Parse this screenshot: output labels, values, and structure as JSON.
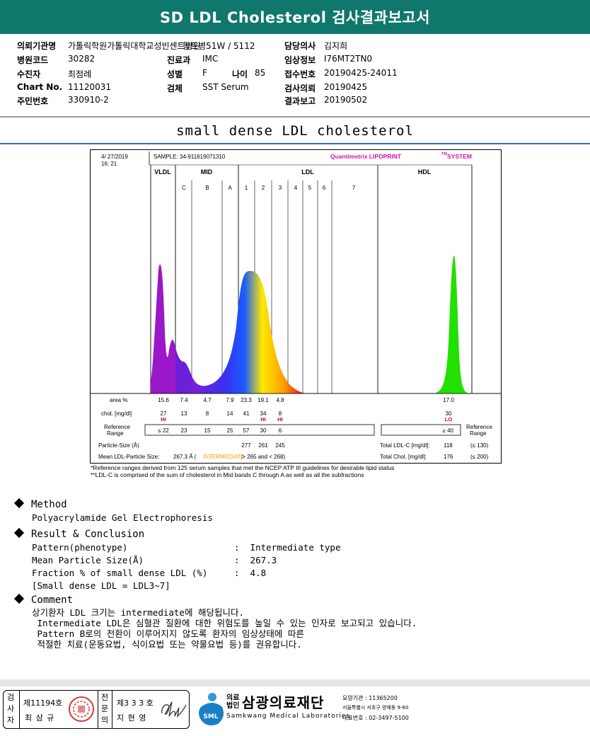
{
  "header": {
    "title": "SD LDL Cholesterol 검사결과보고서"
  },
  "info": {
    "institution_label": "의뢰기관명",
    "institution_value": "가톨릭학원가톨릭대학교성빈센트병원",
    "ward_value": "동트병51W / 5112",
    "hospital_code_label": "병원코드",
    "hospital_code_value": "30282",
    "patient_label": "수진자",
    "patient_value": "최점례",
    "chart_label": "Chart No.",
    "chart_value": "11120031",
    "resident_label": "주민번호",
    "resident_value": "330910-2",
    "dept_label": "진료과",
    "dept_value": "IMC",
    "sex_label": "성별",
    "sex_value": "F",
    "age_label": "나이",
    "age_value": "85",
    "specimen_label": "검체",
    "specimen_value": "SST Serum",
    "doctor_label": "담당의사",
    "doctor_value": "김지희",
    "clinical_label": "임상정보",
    "clinical_value": "I76MT2TN0",
    "receipt_label": "접수번호",
    "receipt_value": "20190425-24011",
    "request_label": "검사의뢰",
    "request_value": "20190425",
    "report_label": "결과보고",
    "report_value": "20190502"
  },
  "subtitle": "small dense LDL cholesterol",
  "chart_data": {
    "type": "area",
    "date": "4/ 27/2019",
    "time": "16: 21",
    "sample": "SAMPLE:  34-911619071310",
    "system": "Quantimetrix LIPOPRINT",
    "system_tm": "TM",
    "system_suffix": "SYSTEM",
    "groups": [
      "VLDL",
      "MID",
      "LDL",
      "HDL"
    ],
    "bands": [
      "C",
      "B",
      "A",
      "1",
      "2",
      "3",
      "4",
      "5",
      "6",
      "7"
    ],
    "rows": {
      "area_label": "area %",
      "area_values": [
        "15.6",
        "7.4",
        "4.7",
        "7.9",
        "23.3",
        "19.1",
        "4.8",
        "17.0"
      ],
      "chol_label": "chol. [mg/dl]",
      "chol_values": [
        "27",
        "13",
        "8",
        "14",
        "41",
        "34",
        "8",
        "30"
      ],
      "flags": [
        "HI",
        "",
        "",
        "",
        "",
        "HI",
        "HI",
        "LO"
      ],
      "ref_label_1": "Reference",
      "ref_label_2": "Range",
      "ref_values": [
        "≤ 22",
        "23",
        "15",
        "25",
        "57",
        "30",
        "6",
        "≥ 40"
      ],
      "psize_label": "Particle-Size (Å)",
      "psize_values": [
        "277",
        "261",
        "245"
      ],
      "mean_label": "Mean LDL-Particle Size:",
      "mean_value": "267.3 Å",
      "mean_type": "INTERMEDIATE",
      "mean_range": ";> 265 and < 268)",
      "total_ldl_label": "Total LDL-C [mg/dl]:",
      "total_ldl_value": "118",
      "total_ldl_ref": "(≤ 130)",
      "total_chol_label": "Total Chol. [mg/dl]:",
      "total_chol_value": "176",
      "total_chol_ref": "(≤ 200)"
    },
    "notes": [
      "*Reference ranges derived from 125 serum samples that met the NCEP ATP III guidelines for desirable lipid status",
      "**LDL-C is comprised of the sum of cholesterol in Mid bands C through A as well as all the subfractions"
    ]
  },
  "method": {
    "heading": "Method",
    "text": "Polyacrylamide Gel Electrophoresis"
  },
  "result": {
    "heading": "Result & Conclusion",
    "lines": [
      "Pattern(phenotype)                    :  Intermediate type",
      "Mean Particle Size(Å)                 :  267.3",
      "Fraction % of small dense LDL (%)     :  4.8",
      "[Small dense LDL = LDL3~7]"
    ]
  },
  "comment": {
    "heading": "Comment",
    "lines": [
      "상기환자 LDL 크기는 intermediate에 해당됩니다.",
      " Intermediate LDL은 심혈관 질환에 대한 위험도를 높일 수 있는 인자로 보고되고 있습니다.",
      " Pattern B로의 전환이 이루어지지 않도록 환자의 임상상태에 따른",
      " 적절한 치료(운동요법, 식이요법 또는 약물요법 등)를 권유합니다."
    ]
  },
  "footer": {
    "examiner_label": "검사자",
    "examiner_no": "제11194호",
    "examiner_name": "최 삼 규",
    "specialist_label": "전문의",
    "specialist_no": "제3 3 3 호",
    "specialist_name": "지 현 영",
    "org_kind": "의료법인",
    "org_name": "삼광의료재단",
    "org_en": "Samkwang Medical Laboratories",
    "code_label": "요양기관 : 11365200",
    "address": "서울특별시 서초구 양재동 9-60",
    "phone": "대표번호 : 02-3497-5100",
    "logo_text": "SML"
  }
}
